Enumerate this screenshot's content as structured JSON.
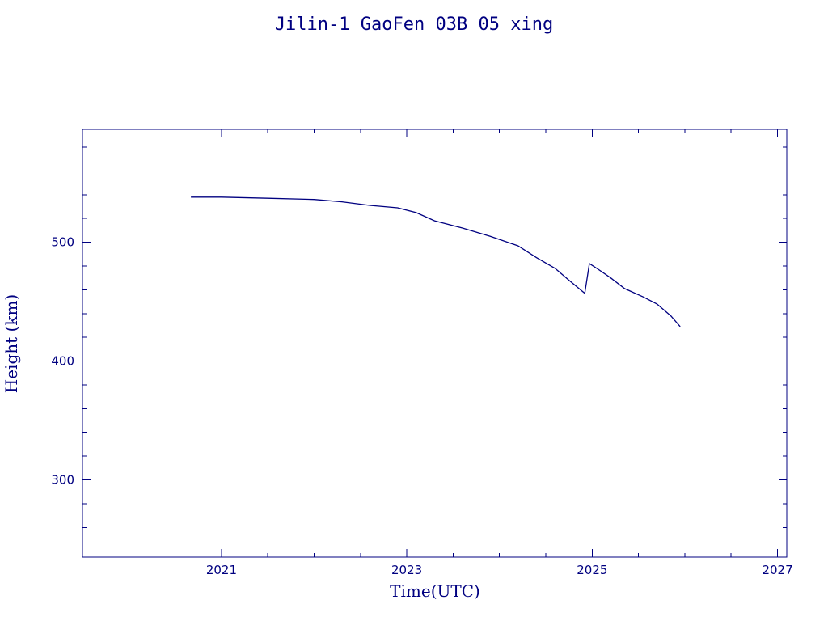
{
  "chart_data": {
    "type": "line",
    "title": "Jilin-1 GaoFen 03B 05 xing",
    "xlabel": "Time(UTC)",
    "ylabel": "Height (km)",
    "xlim": [
      2019.5,
      2027.1
    ],
    "ylim": [
      235,
      595
    ],
    "x_ticks_major": [
      2021,
      2023,
      2025,
      2027
    ],
    "x_tick_labels": [
      "2021",
      "2023",
      "2025",
      "2027"
    ],
    "x_ticks_minor_step": 0.5,
    "y_ticks_major": [
      300,
      400,
      500
    ],
    "y_tick_labels": [
      "300",
      "400",
      "500"
    ],
    "y_ticks_minor_step": 20,
    "grid": false,
    "series": [
      {
        "color": "#000080",
        "x": [
          2020.67,
          2021.0,
          2021.5,
          2022.0,
          2022.3,
          2022.6,
          2022.9,
          2023.1,
          2023.3,
          2023.6,
          2023.9,
          2024.2,
          2024.4,
          2024.6,
          2024.75,
          2024.92,
          2024.97,
          2025.05,
          2025.2,
          2025.35,
          2025.55,
          2025.7,
          2025.85,
          2025.95
        ],
        "values": [
          538,
          538,
          537,
          536,
          534,
          531,
          529,
          525,
          518,
          512,
          505,
          497,
          487,
          478,
          468,
          457,
          482,
          478,
          470,
          461,
          454,
          448,
          438,
          429
        ]
      }
    ]
  }
}
